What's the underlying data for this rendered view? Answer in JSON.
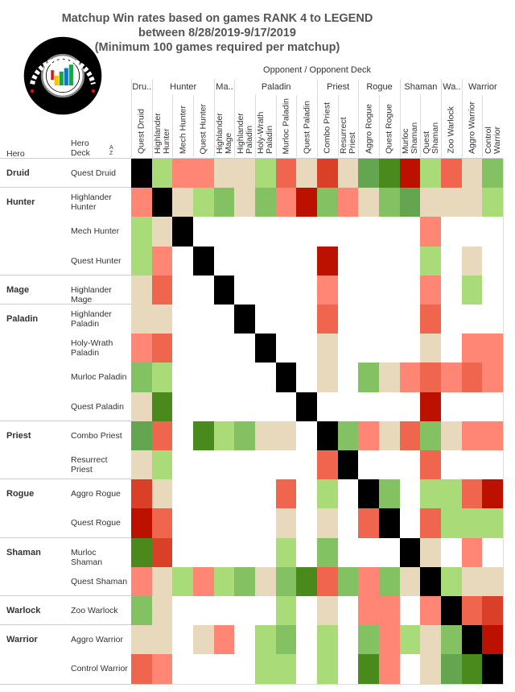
{
  "title_lines": [
    "Matchup Win rates based on games RANK 4 to LEGEND",
    "between 8/28/2019-9/17/2019",
    "(Minimum 100 games required per matchup)"
  ],
  "logo_text": "DATA REAPER REPORT",
  "logo_subtext": "VICIOUS SYNDICATE PRESENTS",
  "opponent_header": "Opponent  /  Opponent Deck",
  "row_headers": {
    "hero": "Hero",
    "deck_line1": "Hero",
    "deck_line2": "Deck",
    "sort_icon": "A Z"
  },
  "chart_data": {
    "type": "heatmap",
    "title": "Matchup Win rates based on games RANK 4 to LEGEND between 8/28/2019-9/17/2019 (Minimum 100 games required per matchup)",
    "x_groups": [
      {
        "label": "Dru..",
        "span": 1
      },
      {
        "label": "Hunter",
        "span": 3
      },
      {
        "label": "Ma..",
        "span": 1
      },
      {
        "label": "Paladin",
        "span": 4
      },
      {
        "label": "Priest",
        "span": 2
      },
      {
        "label": "Rogue",
        "span": 2
      },
      {
        "label": "Shaman",
        "span": 2
      },
      {
        "label": "Wa..",
        "span": 1
      },
      {
        "label": "Warrior",
        "span": 2
      }
    ],
    "columns": [
      "Quest Druid",
      "Highlander Hunter",
      "Mech Hunter",
      "Quest Hunter",
      "Highlander Mage",
      "Highlander Paladin",
      "Holy-Wrath Paladin",
      "Murloc Paladin",
      "Quest Paladin",
      "Combo Priest",
      "Resurrect Priest",
      "Aggro Rogue",
      "Quest Rogue",
      "Murloc Shaman",
      "Quest Shaman",
      "Zoo Warlock",
      "Aggro Warrior",
      "Control Warrior"
    ],
    "row_groups": [
      {
        "hero": "Druid",
        "span": 1
      },
      {
        "hero": "Hunter",
        "span": 3
      },
      {
        "hero": "Mage",
        "span": 1
      },
      {
        "hero": "Paladin",
        "span": 4
      },
      {
        "hero": "Priest",
        "span": 2
      },
      {
        "hero": "Rogue",
        "span": 2
      },
      {
        "hero": "Shaman",
        "span": 2
      },
      {
        "hero": "Warlock",
        "span": 1
      },
      {
        "hero": "Warrior",
        "span": 2
      }
    ],
    "rows": [
      "Quest Druid",
      "Highlander Hunter",
      "Mech Hunter",
      "Quest Hunter",
      "Highlander Mage",
      "Highlander Paladin",
      "Holy-Wrath Paladin",
      "Murloc Paladin",
      "Quest Paladin",
      "Combo Priest",
      "Resurrect Priest",
      "Aggro Rogue",
      "Quest Rogue",
      "Murloc Shaman",
      "Quest Shaman",
      "Zoo Warlock",
      "Aggro Warrior",
      "Control Warrior"
    ],
    "color_scale": {
      "-4": "#bd1100",
      "-3": "#d94027",
      "-2": "#f0654e",
      "-1": "#ff8674",
      "0": "#e8d9bd",
      "1": "#aadb79",
      "2": "#84c163",
      "3": "#63a64f",
      "4": "#4a8a1c",
      "mirror": "#000000",
      "none": "#ffffff"
    },
    "values": [
      [
        "x",
        1,
        -1,
        -1,
        0,
        0,
        1,
        -2,
        0,
        -3,
        0,
        3,
        4,
        -4,
        1,
        -2,
        0,
        2
      ],
      [
        -1,
        "x",
        0,
        1,
        2,
        0,
        2,
        -1,
        -4,
        2,
        -1,
        0,
        2,
        3,
        0,
        0,
        0,
        1
      ],
      [
        1,
        0,
        "x",
        null,
        null,
        null,
        null,
        null,
        null,
        null,
        null,
        null,
        null,
        null,
        -1,
        null,
        null,
        null
      ],
      [
        1,
        -1,
        null,
        "x",
        null,
        null,
        null,
        null,
        null,
        -4,
        null,
        null,
        null,
        null,
        1,
        null,
        0,
        null
      ],
      [
        0,
        -2,
        null,
        null,
        "x",
        null,
        null,
        null,
        null,
        -1,
        null,
        null,
        null,
        null,
        -1,
        null,
        1,
        null
      ],
      [
        0,
        0,
        null,
        null,
        null,
        "x",
        null,
        null,
        null,
        -2,
        null,
        null,
        null,
        null,
        -2,
        null,
        null,
        null
      ],
      [
        -1,
        -2,
        null,
        null,
        null,
        null,
        "x",
        null,
        null,
        0,
        null,
        null,
        null,
        null,
        0,
        null,
        -1,
        -1
      ],
      [
        2,
        1,
        null,
        null,
        null,
        null,
        null,
        "x",
        null,
        0,
        null,
        2,
        0,
        -1,
        -2,
        -1,
        -2,
        -1
      ],
      [
        0,
        4,
        null,
        null,
        null,
        null,
        null,
        null,
        "x",
        null,
        null,
        null,
        null,
        null,
        -4,
        null,
        null,
        null
      ],
      [
        3,
        -2,
        null,
        4,
        1,
        2,
        0,
        0,
        null,
        "x",
        2,
        -1,
        0,
        -2,
        2,
        0,
        -1,
        -1
      ],
      [
        0,
        1,
        null,
        null,
        null,
        null,
        null,
        null,
        null,
        -2,
        "x",
        null,
        null,
        null,
        -2,
        null,
        null,
        null
      ],
      [
        -3,
        0,
        null,
        null,
        null,
        null,
        null,
        -2,
        null,
        1,
        null,
        "x",
        2,
        null,
        1,
        1,
        -2,
        -4
      ],
      [
        -4,
        -2,
        null,
        null,
        null,
        null,
        null,
        0,
        null,
        0,
        null,
        -2,
        "x",
        null,
        -2,
        1,
        1,
        1
      ],
      [
        4,
        -3,
        null,
        null,
        null,
        null,
        null,
        1,
        null,
        2,
        null,
        null,
        null,
        "x",
        0,
        null,
        -1,
        null
      ],
      [
        -1,
        0,
        1,
        -1,
        1,
        2,
        0,
        2,
        4,
        -2,
        2,
        -1,
        2,
        0,
        "x",
        1,
        0,
        0
      ],
      [
        2,
        0,
        null,
        null,
        null,
        null,
        null,
        1,
        null,
        0,
        null,
        -1,
        -1,
        null,
        -1,
        "x",
        -2,
        -3
      ],
      [
        0,
        0,
        null,
        0,
        -1,
        null,
        1,
        2,
        null,
        1,
        null,
        2,
        -1,
        1,
        0,
        2,
        "x",
        -4
      ],
      [
        -2,
        -1,
        null,
        null,
        null,
        null,
        1,
        1,
        null,
        1,
        null,
        4,
        -1,
        null,
        0,
        3,
        4,
        "x"
      ]
    ]
  }
}
